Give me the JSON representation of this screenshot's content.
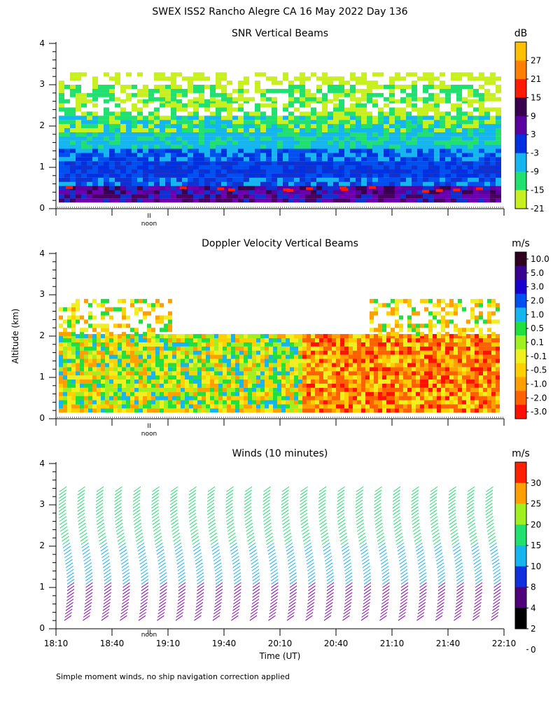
{
  "figure": {
    "title": "SWEX ISS2 Rancho Alegre CA  16 May 2022 Day 136",
    "ylabel": "Altitude (km)",
    "xlabel": "Time (UT)",
    "footnote": "Simple moment winds, no ship navigation correction applied",
    "noon_label": "noon"
  },
  "chart_data": [
    {
      "type": "heatmap",
      "title": "SNR Vertical Beams",
      "unit": "dB",
      "ylim": [
        0,
        4
      ],
      "y_ticks": [
        "0",
        "1",
        "2",
        "3",
        "4"
      ],
      "x_range": [
        "18:10",
        "22:10"
      ],
      "colorbar_labels": [
        "27",
        "21",
        "15",
        "9",
        "3",
        "-3",
        "-9",
        "-15",
        "-21"
      ],
      "colorbar_colors": [
        "#ffc000",
        "#ff8000",
        "#ff1a00",
        "#3a0050",
        "#5a00a0",
        "#0030e0",
        "#15b5f0",
        "#20e070",
        "#c8f020"
      ],
      "rows": [
        {
          "alt": 0.5,
          "color": "#4a0060"
        },
        {
          "alt": 1.0,
          "color": "#1030d0"
        },
        {
          "alt": 1.5,
          "color": "#15b5f0"
        },
        {
          "alt": 2.0,
          "color": "#20e070"
        },
        {
          "alt": 2.5,
          "color": "#c8f020"
        }
      ]
    },
    {
      "type": "heatmap",
      "title": "Doppler Velocity Vertical Beams",
      "unit": "m/s",
      "ylim": [
        0,
        4
      ],
      "y_ticks": [
        "0",
        "1",
        "2",
        "3",
        "4"
      ],
      "x_range": [
        "18:10",
        "22:10"
      ],
      "colorbar_labels": [
        "10.0",
        "5.0",
        "3.0",
        "2.0",
        "1.0",
        "0.5",
        "0.1",
        "-0.1",
        "-0.5",
        "-1.0",
        "-2.0",
        "-3.0"
      ],
      "colorbar_colors": [
        "#300020",
        "#3a0090",
        "#1a00d0",
        "#0050f0",
        "#15b5f0",
        "#20e040",
        "#a0f020",
        "#f0f020",
        "#ffd000",
        "#ffa000",
        "#ff6000",
        "#ff1000"
      ]
    },
    {
      "type": "wind_barbs",
      "title": "Winds (10 minutes)",
      "unit": "m/s",
      "ylim": [
        0,
        4
      ],
      "y_ticks": [
        "0",
        "1",
        "2",
        "3",
        "4"
      ],
      "x_ticks": [
        "18:10",
        "18:40",
        "19:10",
        "19:40",
        "20:10",
        "20:40",
        "21:10",
        "21:40",
        "22:10"
      ],
      "colorbar_labels": [
        "30",
        "25",
        "20",
        "15",
        "10",
        "8",
        "4",
        "2",
        "0"
      ],
      "colorbar_colors": [
        "#ff2000",
        "#ffa000",
        "#a0f020",
        "#20e070",
        "#15b5f0",
        "#1030e0",
        "#50007a",
        "#000000"
      ],
      "profile_speed_colors": [
        "#8a00b0",
        "#15b5f0",
        "#20e070"
      ]
    }
  ]
}
